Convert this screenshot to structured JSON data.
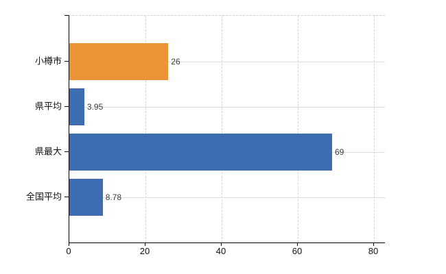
{
  "chart_data": {
    "type": "bar",
    "orientation": "horizontal",
    "title": "",
    "xlabel": "",
    "ylabel": "",
    "categories": [
      "小樽市",
      "県平均",
      "県最大",
      "全国平均"
    ],
    "values": [
      26,
      3.95,
      69,
      8.78
    ],
    "value_labels": [
      "26",
      "3.95",
      "69",
      "8.78"
    ],
    "series": [
      {
        "name": "",
        "values": [
          26,
          3.95,
          69,
          8.78
        ]
      }
    ],
    "bar_colors": [
      "#EC9338",
      "#3D6CB0",
      "#3D6CB0",
      "#3D6CB0"
    ],
    "xticks": [
      0,
      20,
      40,
      60,
      80
    ],
    "xtick_labels": [
      "0",
      "20",
      "40",
      "60",
      "80"
    ],
    "xlim": [
      0,
      82.9
    ],
    "grid": true,
    "legend": false,
    "colors": {
      "highlight_orange": "#EC9338",
      "base_blue": "#3D6CB0",
      "h_gridline": "#d8ded8",
      "v_gridline": "#d6d2d6",
      "axis": "#000000",
      "value_text": "#3c3c3c",
      "tick_text": "#111111",
      "background": "#ffffff"
    }
  }
}
